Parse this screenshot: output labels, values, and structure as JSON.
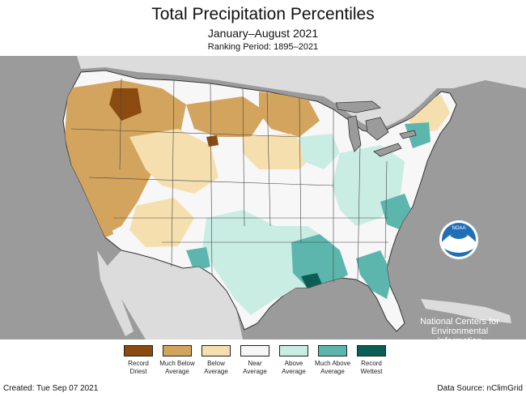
{
  "header": {
    "title": "Total Precipitation Percentiles",
    "period": "January–August 2021",
    "ranking": "Ranking Period: 1895–2021"
  },
  "colors": {
    "record_driest": "#8b4b10",
    "much_below": "#d3a45e",
    "below": "#f5dfae",
    "near": "#f7f7f7",
    "above": "#c9ece3",
    "much_above": "#5cb6ad",
    "record_wettest": "#0b5e55",
    "ocean": "#9b9b9b",
    "land_outside": "#dcdcdc",
    "lakes": "#9b9b9b",
    "noaa_blue": "#1f6fb6"
  },
  "noaa": {
    "logo_text": "NOAA",
    "org_lines": [
      "National Centers for",
      "Environmental",
      "Information"
    ]
  },
  "legend": [
    {
      "label": "Record Driest",
      "color": "#8b4b10"
    },
    {
      "label": "Much Below Average",
      "color": "#d3a45e"
    },
    {
      "label": "Below Average",
      "color": "#f5dfae"
    },
    {
      "label": "Near Average",
      "color": "#f7f7f7"
    },
    {
      "label": "Above Average",
      "color": "#c9ece3"
    },
    {
      "label": "Much Above Average",
      "color": "#5cb6ad"
    },
    {
      "label": "Record Wettest",
      "color": "#0b5e55"
    }
  ],
  "footer": {
    "created": "Created: Tue Sep 07 2021",
    "source": "Data Source: nClimGrid"
  }
}
